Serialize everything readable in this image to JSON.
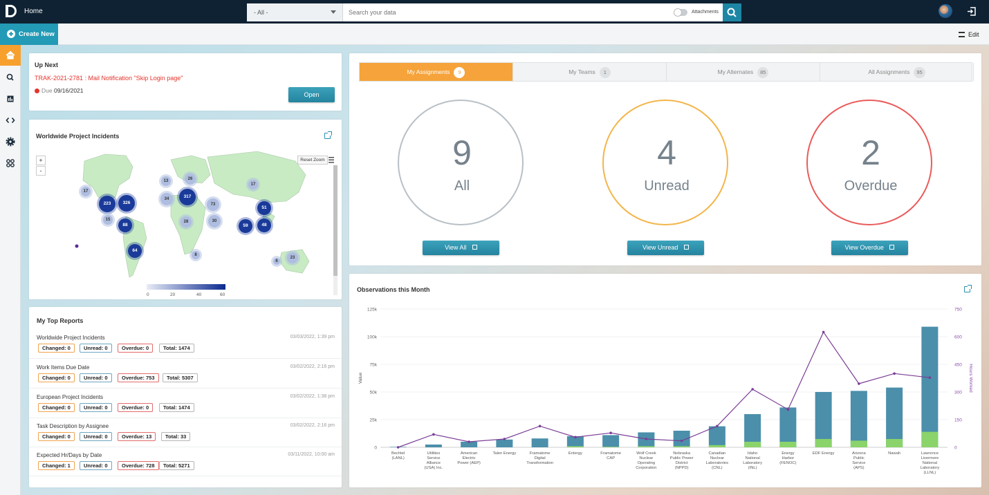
{
  "topbar": {
    "title": "Home",
    "scope_selected": "- All -",
    "search_placeholder": "Search your data",
    "attachments_label": "Attachments"
  },
  "subbar": {
    "create_label": "Create New",
    "edit_label": "Edit"
  },
  "sidebar": {
    "items": [
      "home-icon",
      "search-icon",
      "bar-chart-icon",
      "code-icon",
      "gear-icon",
      "integrations-icon"
    ],
    "active": "home-icon"
  },
  "upnext": {
    "title": "Up Next",
    "item": "TRAK-2021-2781 : Mail Notification \"Skip Login page\"",
    "due_label": "Due",
    "due_date": "09/16/2021",
    "open_label": "Open"
  },
  "map": {
    "title": "Worldwide Project Incidents",
    "reset_zoom": "Reset Zoom",
    "zoom_in": "+",
    "zoom_out": "-",
    "legend": [
      "0",
      "20",
      "40",
      "60"
    ],
    "clusters": [
      "223",
      "326",
      "88",
      "64",
      "15",
      "17",
      "13",
      "26",
      "34",
      "317",
      "73",
      "33",
      "28",
      "30",
      "51",
      "59",
      "48",
      "17",
      "8",
      "6",
      "23"
    ]
  },
  "reports": {
    "title": "My Top Reports",
    "rows": [
      {
        "name": "Worldwide Project Incidents",
        "date": "03/03/2022, 1:39 pm",
        "changed": "Changed: 0",
        "unread": "Unread: 0",
        "overdue": "Overdue: 0",
        "total": "Total: 1474"
      },
      {
        "name": "Work Items Due Date",
        "date": "03/02/2022, 2:16 pm",
        "changed": "Changed: 0",
        "unread": "Unread: 0",
        "overdue": "Overdue: 753",
        "total": "Total: 5307"
      },
      {
        "name": "European Project Incidents",
        "date": "03/02/2022, 1:38 pm",
        "changed": "Changed: 0",
        "unread": "Unread: 0",
        "overdue": "Overdue: 0",
        "total": "Total: 1474"
      },
      {
        "name": "Task Description by Assignee",
        "date": "03/02/2022, 2:16 pm",
        "changed": "Changed: 0",
        "unread": "Unread: 0",
        "overdue": "Overdue: 13",
        "total": "Total: 33"
      },
      {
        "name": "Expected Hr/Days by Date",
        "date": "03/11/2022, 10:00 am",
        "changed": "Changed: 1",
        "unread": "Unread: 0",
        "overdue": "Overdue: 728",
        "total": "Total: 5271"
      }
    ]
  },
  "assignments": {
    "tabs": [
      {
        "label": "My Assignments",
        "count": "9"
      },
      {
        "label": "My Teams",
        "count": "1"
      },
      {
        "label": "My Alternates",
        "count": "85"
      },
      {
        "label": "All Assignments",
        "count": "95"
      }
    ],
    "rings": [
      {
        "value": "9",
        "label": "All",
        "button": "View All",
        "color": "#b8c0c6"
      },
      {
        "value": "4",
        "label": "Unread",
        "button": "View Unread",
        "color": "#f3b54a"
      },
      {
        "value": "2",
        "label": "Overdue",
        "button": "View Overdue",
        "color": "#ea5b5b"
      }
    ]
  },
  "observations": {
    "title": "Observations this Month"
  },
  "chart_data": {
    "type": "bar",
    "title": "Observations this Month",
    "ylabel": "Value",
    "y2label": "Hours Worked",
    "ylim": [
      0,
      125000
    ],
    "y2lim": [
      0,
      750
    ],
    "yticks": [
      "0",
      "25k",
      "50k",
      "75k",
      "100k",
      "125k"
    ],
    "y2ticks": [
      "0",
      "150",
      "300",
      "450",
      "600",
      "750"
    ],
    "categories": [
      "Bechtel (LANL)",
      "Utilities Service Alliance (USA) Inc.",
      "American Electric Power (AEP)",
      "Talen Energy",
      "Framatome Digital Transformation",
      "Entergy",
      "Framatome CAP",
      "Wolf Creek Nuclear Operating Corporation",
      "Nebraska Public Power District (NPPD)",
      "Canadian Nuclear Laboratories (CNL)",
      "Idaho National Laboratory (INL)",
      "Energy Harbor (FENOC)",
      "EDF Energy",
      "Arizona Public Service (APS)",
      "Nawah",
      "Lawrence Livermore National Laboratory (LLNL)"
    ],
    "series": [
      {
        "type": "bar",
        "color": "#4b8fab",
        "values": [
          400,
          2500,
          5000,
          7000,
          8000,
          10000,
          11000,
          13500,
          15000,
          19000,
          30000,
          36000,
          50000,
          51000,
          54000,
          109000
        ]
      },
      {
        "type": "bar",
        "color": "#8bd36b",
        "values": [
          0,
          0,
          0,
          0,
          0,
          1000,
          500,
          1000,
          1000,
          2000,
          5000,
          5000,
          7500,
          6000,
          7500,
          14000
        ]
      },
      {
        "type": "line",
        "axis": "y2",
        "color": "#7a3d96",
        "values": [
          0,
          70,
          30,
          45,
          115,
          55,
          78,
          45,
          35,
          115,
          315,
          205,
          625,
          345,
          400,
          378
        ]
      }
    ]
  }
}
